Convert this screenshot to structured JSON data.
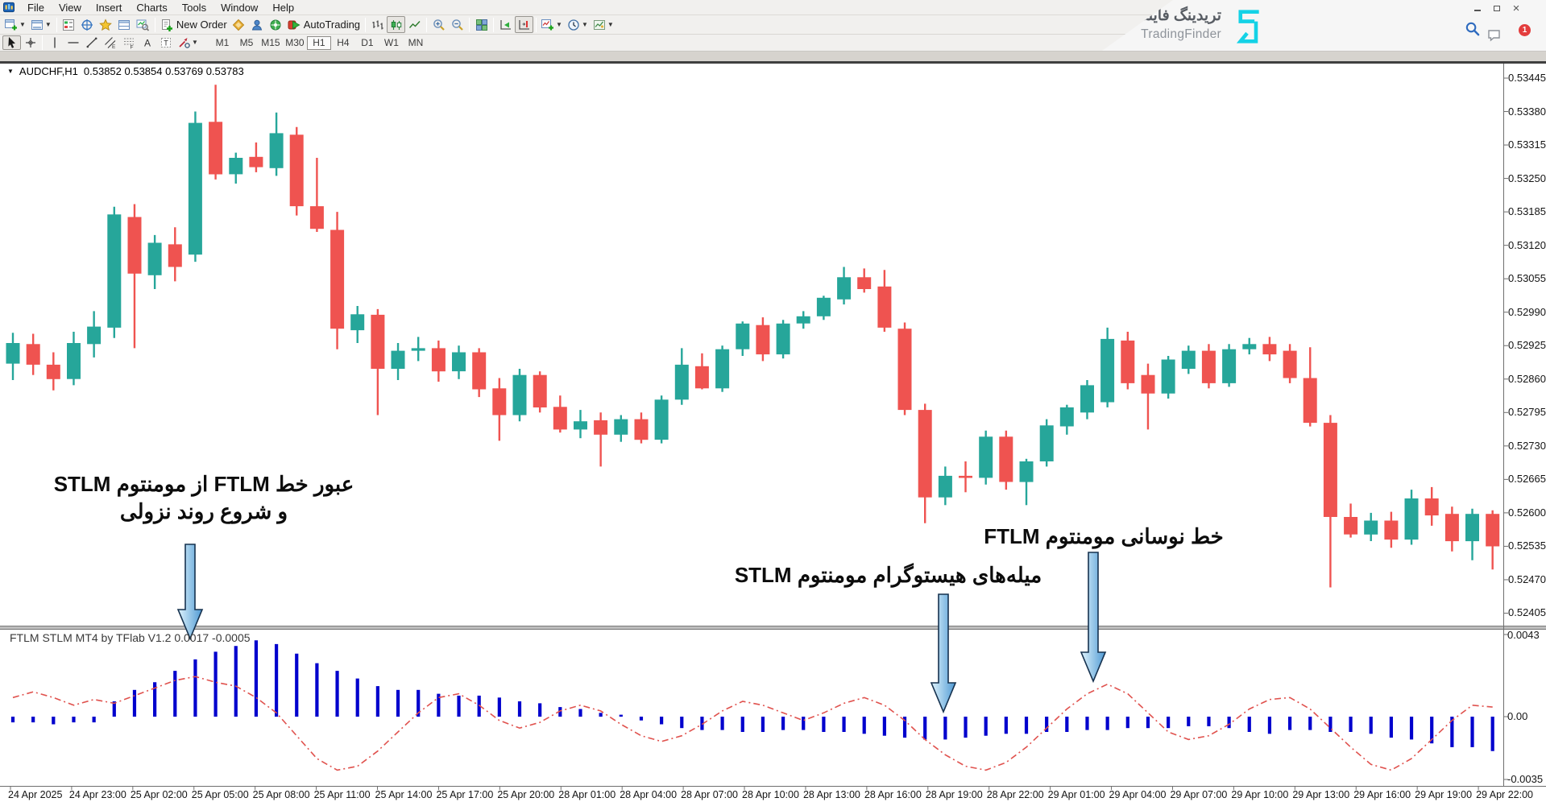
{
  "menu": {
    "items": [
      "File",
      "View",
      "Insert",
      "Charts",
      "Tools",
      "Window",
      "Help"
    ]
  },
  "window_controls": {
    "notification_badge": "1"
  },
  "brand": {
    "name_fa": "تریدینگ فایندر",
    "name_en": "TradingFinder"
  },
  "toolbar": {
    "new_order_label": "New Order",
    "autotrading_label": "AutoTrading",
    "timeframes": [
      "M1",
      "M5",
      "M15",
      "M30",
      "H1",
      "H4",
      "D1",
      "W1",
      "MN"
    ],
    "active_timeframe": "H1"
  },
  "icons": {
    "app": "mt4-terminal",
    "search": "magnifier",
    "chat": "speech-bubble",
    "autotrading": "red-box-green-play",
    "navigator": "star",
    "periods": "clock"
  },
  "chart": {
    "title": {
      "symbol": "AUDCHF,H1",
      "ohlc": "0.53852 0.53854 0.53769 0.53783"
    }
  },
  "annotations": {
    "note1_line1": "عبور خط FTLM از مومنتوم STLM",
    "note1_line2": "و شروع روند نزولی",
    "note2": "خط نوسانی مومنتوم FTLM",
    "note3": "میله‌های هیستوگرام مومنتوم STLM"
  },
  "chart_data": {
    "type": "candlestick",
    "symbol": "AUDCHF",
    "timeframe": "H1",
    "colors": {
      "bull": "#26a69a",
      "bear": "#ef5350",
      "histogram": "#0000cd",
      "signal_line": "#e0524e"
    },
    "price_axis_labels": [
      "0.53445",
      "0.53380",
      "0.53315",
      "0.53250",
      "0.53185",
      "0.53120",
      "0.53055",
      "0.52990",
      "0.52925",
      "0.52860",
      "0.52795",
      "0.52730",
      "0.52665",
      "0.52600",
      "0.52535",
      "0.52470",
      "0.52405"
    ],
    "time_axis_labels": [
      "24 Apr 2025",
      "24 Apr 23:00",
      "25 Apr 02:00",
      "25 Apr 05:00",
      "25 Apr 08:00",
      "25 Apr 11:00",
      "25 Apr 14:00",
      "25 Apr 17:00",
      "25 Apr 20:00",
      "28 Apr 01:00",
      "28 Apr 04:00",
      "28 Apr 07:00",
      "28 Apr 10:00",
      "28 Apr 13:00",
      "28 Apr 16:00",
      "28 Apr 19:00",
      "28 Apr 22:00",
      "29 Apr 01:00",
      "29 Apr 04:00",
      "29 Apr 07:00",
      "29 Apr 10:00",
      "29 Apr 13:00",
      "29 Apr 16:00",
      "29 Apr 19:00",
      "29 Apr 22:00"
    ],
    "candles": [
      [
        0.5289,
        0.5295,
        0.52858,
        0.5293
      ],
      [
        0.52928,
        0.52948,
        0.52868,
        0.52888
      ],
      [
        0.52888,
        0.52912,
        0.52838,
        0.5286
      ],
      [
        0.5286,
        0.52952,
        0.52848,
        0.5293
      ],
      [
        0.52928,
        0.52992,
        0.52902,
        0.52962
      ],
      [
        0.5296,
        0.53195,
        0.5294,
        0.5318
      ],
      [
        0.53175,
        0.532,
        0.5292,
        0.53065
      ],
      [
        0.53062,
        0.5314,
        0.53035,
        0.53125
      ],
      [
        0.53122,
        0.53155,
        0.5305,
        0.53078
      ],
      [
        0.53102,
        0.5338,
        0.53088,
        0.53358
      ],
      [
        0.5336,
        0.53432,
        0.53248,
        0.53258
      ],
      [
        0.53258,
        0.533,
        0.5324,
        0.5329
      ],
      [
        0.53292,
        0.5332,
        0.53262,
        0.53272
      ],
      [
        0.5327,
        0.53378,
        0.53255,
        0.53338
      ],
      [
        0.53335,
        0.5335,
        0.53178,
        0.53196
      ],
      [
        0.53196,
        0.5329,
        0.53146,
        0.53152
      ],
      [
        0.5315,
        0.53185,
        0.52918,
        0.52958
      ],
      [
        0.52955,
        0.53002,
        0.5293,
        0.52986
      ],
      [
        0.52985,
        0.52996,
        0.5279,
        0.5288
      ],
      [
        0.5288,
        0.5293,
        0.52858,
        0.52915
      ],
      [
        0.52915,
        0.52942,
        0.52895,
        0.5292
      ],
      [
        0.5292,
        0.52935,
        0.52855,
        0.52875
      ],
      [
        0.52875,
        0.52925,
        0.5286,
        0.52912
      ],
      [
        0.52912,
        0.5292,
        0.52825,
        0.5284
      ],
      [
        0.52842,
        0.52862,
        0.5274,
        0.5279
      ],
      [
        0.5279,
        0.5288,
        0.52778,
        0.52868
      ],
      [
        0.52868,
        0.52875,
        0.52795,
        0.52805
      ],
      [
        0.52806,
        0.52828,
        0.52756,
        0.52762
      ],
      [
        0.52762,
        0.528,
        0.52745,
        0.52778
      ],
      [
        0.5278,
        0.52795,
        0.5269,
        0.52752
      ],
      [
        0.52752,
        0.5279,
        0.52738,
        0.52782
      ],
      [
        0.52782,
        0.52795,
        0.52735,
        0.52742
      ],
      [
        0.52742,
        0.52828,
        0.52735,
        0.5282
      ],
      [
        0.5282,
        0.5292,
        0.5281,
        0.52888
      ],
      [
        0.52885,
        0.5291,
        0.5284,
        0.52842
      ],
      [
        0.52842,
        0.52925,
        0.52835,
        0.52918
      ],
      [
        0.52918,
        0.52972,
        0.52905,
        0.52968
      ],
      [
        0.52965,
        0.5298,
        0.52895,
        0.52908
      ],
      [
        0.52908,
        0.52975,
        0.529,
        0.52968
      ],
      [
        0.52968,
        0.52992,
        0.52958,
        0.52982
      ],
      [
        0.52982,
        0.53022,
        0.52975,
        0.53018
      ],
      [
        0.53015,
        0.53078,
        0.53005,
        0.53058
      ],
      [
        0.53058,
        0.53075,
        0.53028,
        0.53035
      ],
      [
        0.5304,
        0.53072,
        0.52952,
        0.5296
      ],
      [
        0.52958,
        0.5297,
        0.5279,
        0.528
      ],
      [
        0.528,
        0.52812,
        0.5258,
        0.5263
      ],
      [
        0.5263,
        0.5269,
        0.52615,
        0.52672
      ],
      [
        0.52672,
        0.527,
        0.5264,
        0.52668
      ],
      [
        0.52668,
        0.5276,
        0.52655,
        0.52748
      ],
      [
        0.52748,
        0.5276,
        0.52645,
        0.5266
      ],
      [
        0.5266,
        0.52705,
        0.52615,
        0.527
      ],
      [
        0.527,
        0.52782,
        0.5269,
        0.5277
      ],
      [
        0.52768,
        0.5281,
        0.52752,
        0.52805
      ],
      [
        0.52795,
        0.52858,
        0.52782,
        0.52848
      ],
      [
        0.52815,
        0.5296,
        0.52805,
        0.52938
      ],
      [
        0.52935,
        0.52952,
        0.5284,
        0.52852
      ],
      [
        0.52868,
        0.5289,
        0.52762,
        0.52832
      ],
      [
        0.52832,
        0.52905,
        0.52822,
        0.52898
      ],
      [
        0.5288,
        0.52925,
        0.5287,
        0.52915
      ],
      [
        0.52915,
        0.52928,
        0.52842,
        0.52852
      ],
      [
        0.52852,
        0.52928,
        0.52845,
        0.52918
      ],
      [
        0.52918,
        0.5294,
        0.52908,
        0.52928
      ],
      [
        0.52928,
        0.52942,
        0.52895,
        0.52908
      ],
      [
        0.52915,
        0.52928,
        0.52852,
        0.52862
      ],
      [
        0.52862,
        0.52922,
        0.52768,
        0.52775
      ],
      [
        0.52775,
        0.5279,
        0.52455,
        0.52592
      ],
      [
        0.52592,
        0.52618,
        0.52552,
        0.52558
      ],
      [
        0.52558,
        0.526,
        0.52545,
        0.52585
      ],
      [
        0.52585,
        0.52602,
        0.52532,
        0.52548
      ],
      [
        0.52548,
        0.52645,
        0.52538,
        0.52628
      ],
      [
        0.52628,
        0.5265,
        0.52575,
        0.52595
      ],
      [
        0.52598,
        0.52612,
        0.52525,
        0.52545
      ],
      [
        0.52545,
        0.52608,
        0.52508,
        0.52598
      ],
      [
        0.52598,
        0.52605,
        0.5249,
        0.52535
      ]
    ],
    "indicator": {
      "label": "FTLM STLM MT4 by TFlab V1.2 0.0017 -0.0005",
      "axis_labels": [
        "0.0043",
        "0.00",
        "-0.0035"
      ],
      "ftlm_line": [
        0.001,
        0.0013,
        0.001,
        0.0006,
        0.0009,
        0.0007,
        0.0011,
        0.0015,
        0.0019,
        0.0021,
        0.0018,
        0.0016,
        0.001,
        0.0002,
        -0.001,
        -0.0022,
        -0.0028,
        -0.0026,
        -0.0018,
        -0.0008,
        0.0002,
        0.001,
        0.0012,
        0.0006,
        -0.0002,
        -0.0006,
        -0.0003,
        0.0003,
        0.0006,
        0.0003,
        -0.0004,
        -0.001,
        -0.0013,
        -0.001,
        -0.0004,
        0.0003,
        0.0008,
        0.0006,
        0.0002,
        -0.0002,
        0.0002,
        0.0007,
        0.001,
        0.0006,
        -0.0002,
        -0.0012,
        -0.002,
        -0.0026,
        -0.0028,
        -0.0024,
        -0.0016,
        -0.0006,
        0.0004,
        0.0012,
        0.0017,
        0.0012,
        0.0002,
        -0.0008,
        -0.0012,
        -0.001,
        -0.0004,
        0.0004,
        0.0009,
        0.001,
        0.0004,
        -0.0006,
        -0.0016,
        -0.0025,
        -0.0028,
        -0.0022,
        -0.0012,
        -0.0002,
        0.0006,
        0.0005
      ],
      "stlm_histogram": [
        -0.0003,
        -0.0003,
        -0.0004,
        -0.0003,
        -0.0003,
        0.0008,
        0.0014,
        0.0018,
        0.0024,
        0.003,
        0.0034,
        0.0037,
        0.004,
        0.0038,
        0.0033,
        0.0028,
        0.0024,
        0.002,
        0.0016,
        0.0014,
        0.0014,
        0.0012,
        0.0011,
        0.0011,
        0.001,
        0.0008,
        0.0007,
        0.0005,
        0.0004,
        0.0002,
        0.0001,
        -0.0002,
        -0.0004,
        -0.0006,
        -0.0007,
        -0.0007,
        -0.0008,
        -0.0008,
        -0.0007,
        -0.0007,
        -0.0008,
        -0.0008,
        -0.0009,
        -0.001,
        -0.0011,
        -0.0012,
        -0.0012,
        -0.0011,
        -0.001,
        -0.0009,
        -0.0009,
        -0.0008,
        -0.0008,
        -0.0007,
        -0.0007,
        -0.0006,
        -0.0006,
        -0.0006,
        -0.0005,
        -0.0005,
        -0.0006,
        -0.0008,
        -0.0009,
        -0.0007,
        -0.0007,
        -0.0008,
        -0.0008,
        -0.0009,
        -0.0011,
        -0.0012,
        -0.0014,
        -0.0016,
        -0.0016,
        -0.0018
      ]
    }
  }
}
